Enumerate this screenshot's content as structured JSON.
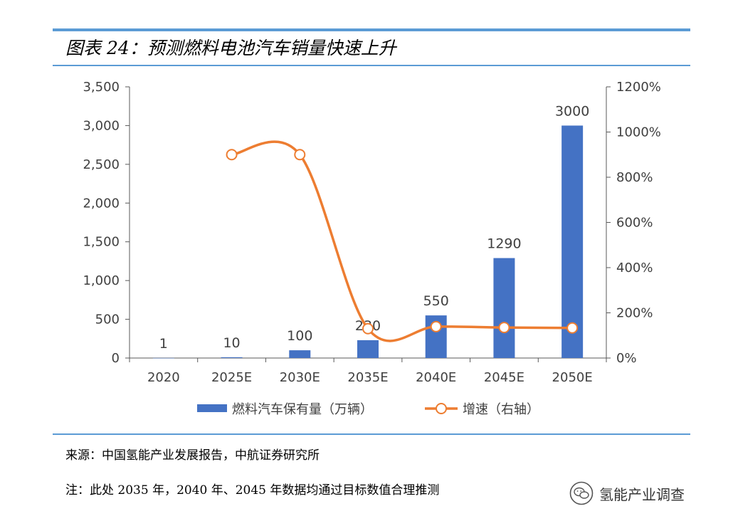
{
  "caption": "图表 24：预测燃料电池汽车销量快速上升",
  "source_note": "来源：中国氢能产业发展报告，中航证券研究所",
  "remark_note": "注：此处 2035 年，2040 年、2045 年数据均通过目标数值合理推测",
  "watermark": {
    "text": "氢能产业调查",
    "icon": "wechat-icon"
  },
  "chart_data": {
    "type": "bar",
    "categories": [
      "2020",
      "2025E",
      "2030E",
      "2035E",
      "2040E",
      "2045E",
      "2050E"
    ],
    "series": [
      {
        "name": "燃料汽车保有量（万辆）",
        "type": "bar",
        "axis": "left",
        "color": "#4472C4",
        "values": [
          1,
          10,
          100,
          230,
          550,
          1290,
          3000
        ],
        "labels": [
          "1",
          "10",
          "100",
          "230",
          "550",
          "1290",
          "3000"
        ]
      },
      {
        "name": "增速（右轴）",
        "type": "line",
        "axis": "right",
        "color": "#ED7D31",
        "values": [
          null,
          900,
          900,
          130,
          139,
          135,
          133
        ]
      }
    ],
    "y_left": {
      "ylim": [
        0,
        3500
      ],
      "ticks": [
        0,
        500,
        1000,
        1500,
        2000,
        2500,
        3000,
        3500
      ],
      "tick_labels": [
        "0",
        "500",
        "1,000",
        "1,500",
        "2,000",
        "2,500",
        "3,000",
        "3,500"
      ]
    },
    "y_right": {
      "ylim": [
        0,
        1200
      ],
      "ticks": [
        0,
        200,
        400,
        600,
        800,
        1000,
        1200
      ],
      "tick_labels": [
        "0%",
        "200%",
        "400%",
        "600%",
        "800%",
        "1000%",
        "1200%"
      ]
    },
    "grid": false,
    "legend_position": "bottom"
  }
}
